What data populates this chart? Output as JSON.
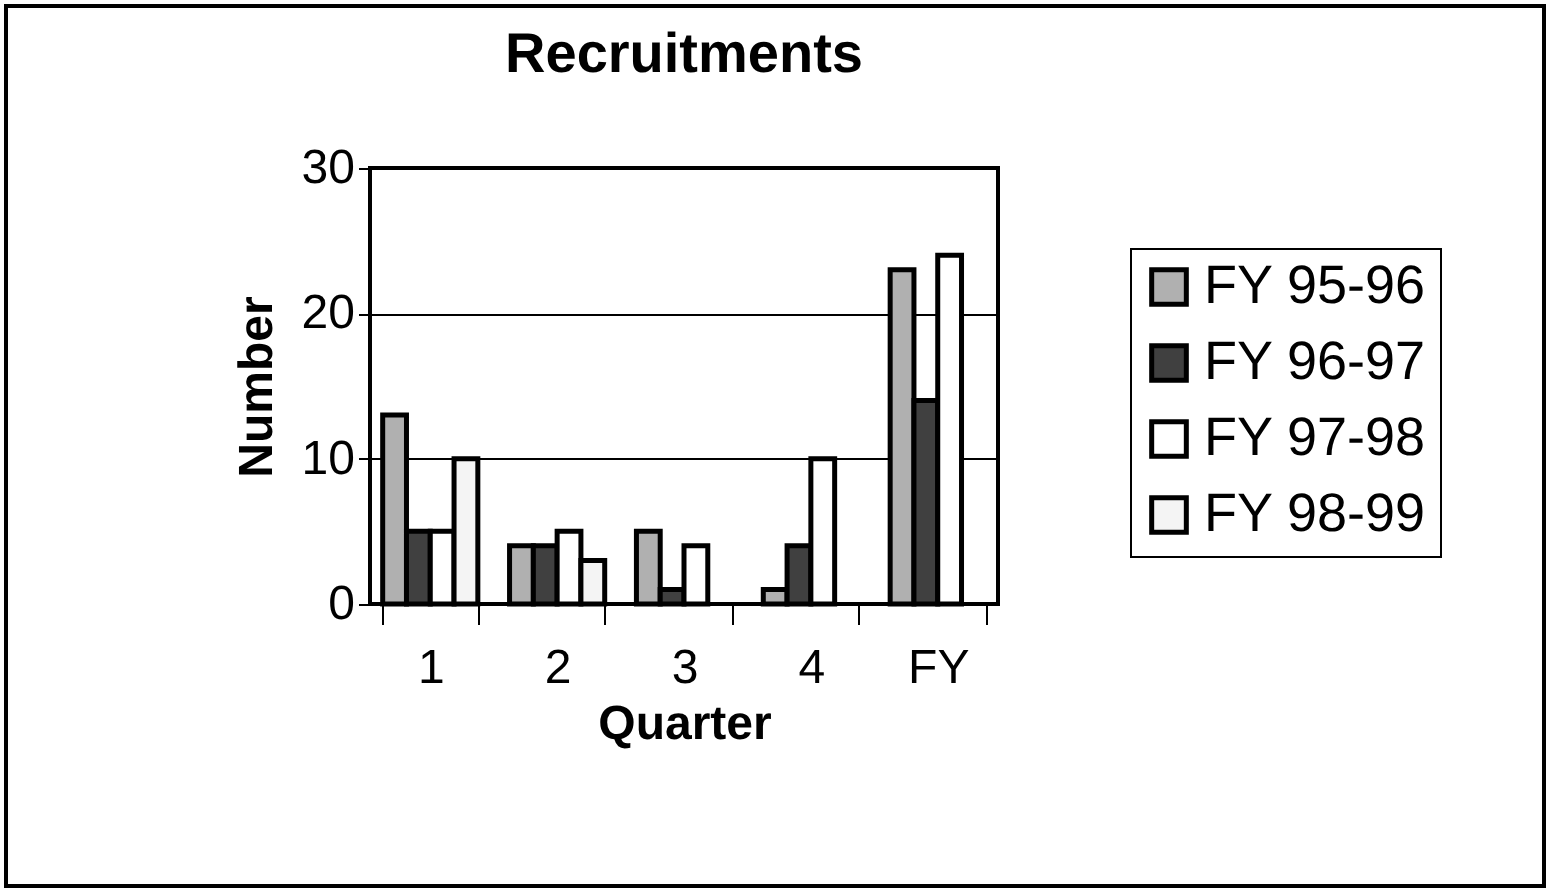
{
  "chart_data": {
    "type": "bar",
    "title": "Recruitments",
    "xlabel": "Quarter",
    "ylabel": "Number",
    "categories": [
      "1",
      "2",
      "3",
      "4",
      "FY"
    ],
    "series": [
      {
        "name": "FY 95-96",
        "color": "#b0b0b0",
        "values": [
          13,
          4,
          5,
          1,
          23
        ]
      },
      {
        "name": "FY 96-97",
        "color": "#404040",
        "values": [
          5,
          4,
          1,
          4,
          14
        ]
      },
      {
        "name": "FY 97-98",
        "color": "#ffffff",
        "values": [
          5,
          5,
          4,
          10,
          24
        ]
      },
      {
        "name": "FY 98-99",
        "color": "#f4f4f4",
        "values": [
          10,
          3,
          null,
          null,
          null
        ]
      }
    ],
    "ylim": [
      0,
      30
    ],
    "yticks": [
      0,
      10,
      20,
      30
    ],
    "grid": "y",
    "legend": "right"
  }
}
